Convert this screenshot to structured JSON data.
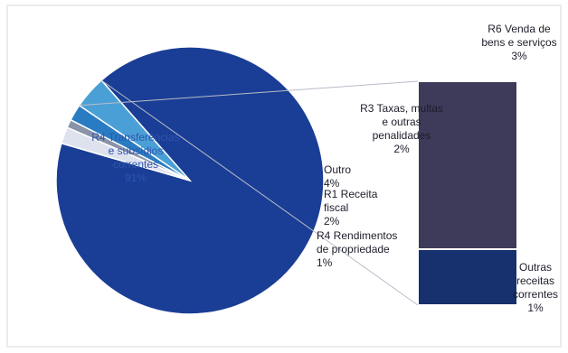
{
  "chart_data": {
    "type": "pie",
    "subtype": "pie-of-bar",
    "pie": {
      "slices": [
        {
          "label": "R4 Transferências e subsídios correntes",
          "label_lines": [
            "R4 Transferências",
            "e subsídios",
            "correntes"
          ],
          "value_label": "91%",
          "value": 91,
          "color": "#1a3e95"
        },
        {
          "label": "Outro",
          "label_lines": [
            "Outro"
          ],
          "value_label": "4%",
          "value": 4,
          "color": "#4aa0d6"
        },
        {
          "label": "R1 Receita fiscal",
          "label_lines": [
            "R1 Receita",
            "fiscal"
          ],
          "value_label": "2%",
          "value": 2,
          "color": "#2a7cc2"
        },
        {
          "label": "R4 Rendimentos de propriedade",
          "label_lines": [
            "R4 Rendimentos",
            "de propriedade"
          ],
          "value_label": "1%",
          "value": 1,
          "color": "#8a94a8"
        },
        {
          "label": "R3 Taxas, multas e outras penalidades",
          "label_lines": [
            "R3 Taxas, multas",
            "e outras",
            "penalidades"
          ],
          "value_label": "2%",
          "value": 2,
          "color": "#dde2ee"
        }
      ]
    },
    "bar": {
      "exploded_from": "Outro",
      "segments": [
        {
          "label": "R6 Venda de bens e serviços",
          "label_lines": [
            "R6 Venda de",
            "bens e serviços"
          ],
          "value_label": "3%",
          "value": 3,
          "color": "#3e3a5a"
        },
        {
          "label": "Outras receitas correntes",
          "label_lines": [
            "Outras",
            "receitas",
            "correntes"
          ],
          "value_label": "1%",
          "value": 1,
          "color": "#17306e"
        }
      ]
    },
    "legend": "none"
  }
}
